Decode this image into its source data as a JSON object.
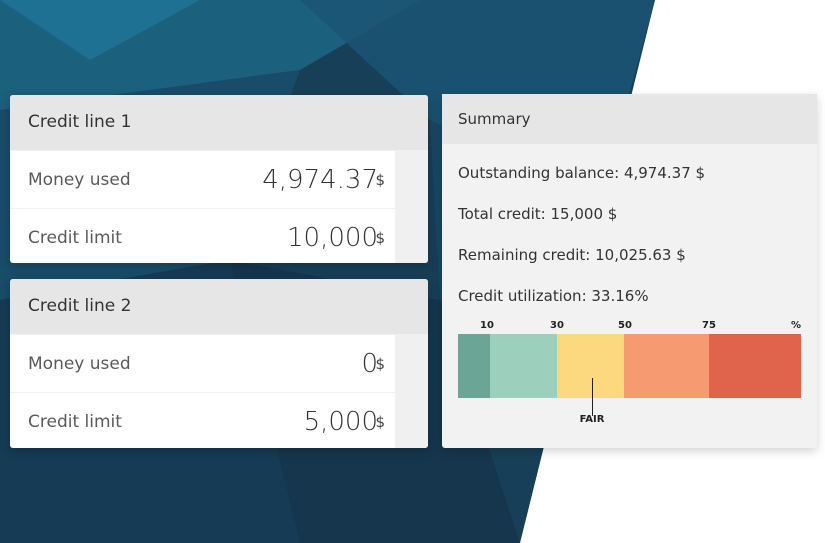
{
  "colors": {
    "bg_dark": "#163a52",
    "bg_mid": "#1c5a78",
    "bg_light": "#1f6f8c",
    "header_gray": "#e6e6e6",
    "gauge": [
      "#6aa595",
      "#9dd0bc",
      "#fcd97e",
      "#f69a72",
      "#e0634b"
    ]
  },
  "credit_lines": [
    {
      "title": "Credit line 1",
      "rows": [
        {
          "label": "Money used",
          "value": "4,974.37",
          "unit": "$"
        },
        {
          "label": "Credit limit",
          "value": "10,000",
          "unit": "$"
        }
      ]
    },
    {
      "title": "Credit line 2",
      "rows": [
        {
          "label": "Money used",
          "value": "0",
          "unit": "$"
        },
        {
          "label": "Credit limit",
          "value": "5,000",
          "unit": "$"
        }
      ]
    }
  ],
  "summary": {
    "title": "Summary",
    "outstanding": "Outstanding balance: 4,974.37 $",
    "total": "Total credit: 15,000 $",
    "remaining": "Remaining credit: 10,025.63 $",
    "utilization": "Credit utilization: 33.16%",
    "gauge": {
      "ticks": [
        "10",
        "30",
        "50",
        "75",
        "%"
      ],
      "marker_label": "FAIR",
      "marker_value": 33.16
    }
  }
}
